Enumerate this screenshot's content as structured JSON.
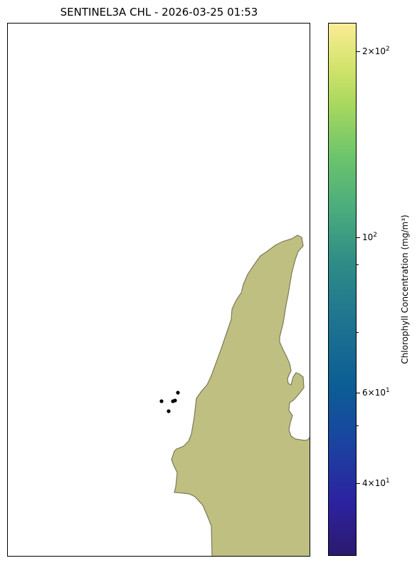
{
  "map": {
    "title": "SENTINEL3A CHL - 2026-03-25 01:53",
    "land_color": "#bfbf82",
    "coast_color": "#7a7a5a",
    "point_color": "#000000"
  },
  "colorbar": {
    "label": "Chlorophyll Concentration (mg/m³)",
    "scale": "log",
    "colormap": "viridis",
    "tick_labels": [
      {
        "mantissa": "2",
        "exp": "2"
      },
      {
        "mantissa": "",
        "exp": "2"
      },
      {
        "mantissa": "6",
        "exp": "1"
      },
      {
        "mantissa": "4",
        "exp": "1"
      }
    ]
  }
}
